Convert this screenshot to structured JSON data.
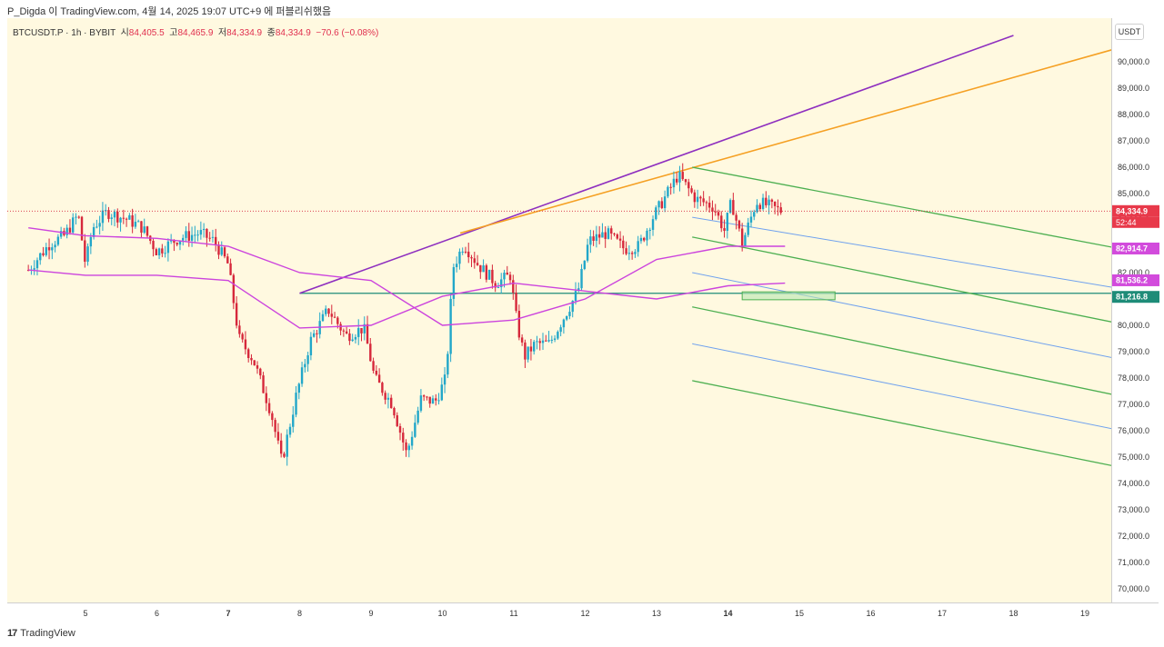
{
  "header": {
    "publish_text": "P_Digda 이 TradingView.com, 4월 14, 2025 19:07 UTC+9 에 퍼블리쉬했음"
  },
  "legend": {
    "symbol": "BTCUSDT.P · 1h · BYBIT",
    "open_label": "시",
    "open": "84,405.5",
    "high_label": "고",
    "high": "84,465.9",
    "low_label": "저",
    "low": "84,334.9",
    "close_label": "종",
    "close": "84,334.9",
    "change": "−70.6 (−0.08%)"
  },
  "footer": {
    "brand": "TradingView",
    "logo": "17"
  },
  "price_axis": {
    "unit": "USDT",
    "ticks": [
      "90,000.0",
      "89,000.0",
      "88,000.0",
      "87,000.0",
      "86,000.0",
      "85,000.0",
      "84,000.0",
      "83,000.0",
      "82,000.0",
      "81,000.0",
      "80,000.0",
      "79,000.0",
      "78,000.0",
      "77,000.0",
      "76,000.0",
      "75,000.0",
      "74,000.0",
      "73,000.0",
      "72,000.0",
      "71,000.0",
      "70,000.0"
    ],
    "badges": {
      "last": "84,334.9",
      "countdown": "52:44",
      "ma_upper": "82,914.7",
      "ma_lower": "81,536.2",
      "hline": "81,216.8"
    }
  },
  "time_axis": {
    "ticks": [
      "5",
      "6",
      "7",
      "8",
      "9",
      "10",
      "11",
      "12",
      "13",
      "14",
      "15",
      "16",
      "17",
      "18",
      "19"
    ]
  },
  "colors": {
    "background": "#fff9e0",
    "up": "#22a7c9",
    "down": "#d6283b",
    "ma": "#cc44dd",
    "purple": "#8e2fbf",
    "orange": "#f5a023",
    "green": "#4caf50",
    "blue": "#6fa1ee",
    "hline": "#1e8c78",
    "badge_last": "#e8394a",
    "badge_ma": "#d24bdc",
    "badge_hline": "#1e8c78"
  },
  "chart_data": {
    "type": "candlestick",
    "symbol": "BTCUSDT.P",
    "interval": "1h",
    "exchange": "BYBIT",
    "ylim": [
      69500,
      91000
    ],
    "x_day_range": [
      4.2,
      19.7
    ],
    "close_path": [
      [
        4.2,
        82100
      ],
      [
        4.5,
        83100
      ],
      [
        4.7,
        83400
      ],
      [
        4.9,
        84200
      ],
      [
        5.0,
        82300
      ],
      [
        5.1,
        83700
      ],
      [
        5.3,
        84300
      ],
      [
        5.6,
        84000
      ],
      [
        5.8,
        83700
      ],
      [
        6.0,
        82800
      ],
      [
        6.3,
        83300
      ],
      [
        6.6,
        83500
      ],
      [
        6.8,
        83200
      ],
      [
        7.0,
        82300
      ],
      [
        7.15,
        79500
      ],
      [
        7.35,
        78700
      ],
      [
        7.6,
        76700
      ],
      [
        7.75,
        74800
      ],
      [
        7.95,
        77300
      ],
      [
        8.15,
        79400
      ],
      [
        8.4,
        80600
      ],
      [
        8.65,
        79600
      ],
      [
        8.9,
        79900
      ],
      [
        9.05,
        78000
      ],
      [
        9.3,
        77000
      ],
      [
        9.5,
        75100
      ],
      [
        9.7,
        77200
      ],
      [
        9.9,
        77100
      ],
      [
        10.05,
        78000
      ],
      [
        10.15,
        82200
      ],
      [
        10.3,
        83100
      ],
      [
        10.5,
        82300
      ],
      [
        10.75,
        81600
      ],
      [
        10.95,
        81900
      ],
      [
        11.05,
        80000
      ],
      [
        11.15,
        78800
      ],
      [
        11.3,
        79300
      ],
      [
        11.5,
        79300
      ],
      [
        11.7,
        80300
      ],
      [
        11.9,
        81300
      ],
      [
        12.05,
        83200
      ],
      [
        12.3,
        83500
      ],
      [
        12.55,
        82900
      ],
      [
        12.75,
        83000
      ],
      [
        12.95,
        84100
      ],
      [
        13.15,
        85000
      ],
      [
        13.3,
        85700
      ],
      [
        13.55,
        84800
      ],
      [
        13.8,
        84500
      ],
      [
        13.95,
        83600
      ],
      [
        14.05,
        84700
      ],
      [
        14.2,
        83100
      ],
      [
        14.4,
        84700
      ],
      [
        14.6,
        84500
      ],
      [
        14.75,
        84335
      ]
    ],
    "moving_averages": [
      {
        "name": "",
        "points": [
          [
            4.2,
            83700
          ],
          [
            5.0,
            83400
          ],
          [
            6.0,
            83300
          ],
          [
            7.0,
            83000
          ],
          [
            8.0,
            82000
          ],
          [
            9.0,
            81700
          ],
          [
            10.0,
            80000
          ],
          [
            11.0,
            80200
          ],
          [
            12.0,
            81000
          ],
          [
            13.0,
            82500
          ],
          [
            14.0,
            83000
          ],
          [
            14.8,
            83000
          ]
        ]
      },
      {
        "name": "",
        "points": [
          [
            4.2,
            82100
          ],
          [
            5.0,
            81900
          ],
          [
            6.0,
            81900
          ],
          [
            7.0,
            81700
          ],
          [
            8.0,
            79900
          ],
          [
            9.0,
            80000
          ],
          [
            10.0,
            81100
          ],
          [
            11.0,
            81600
          ],
          [
            12.0,
            81300
          ],
          [
            13.0,
            81000
          ],
          [
            14.0,
            81500
          ],
          [
            14.8,
            81600
          ]
        ]
      }
    ],
    "lines": [
      {
        "name": "",
        "points": [
          [
            8.0,
            81216.8
          ],
          [
            19.7,
            81216.8
          ]
        ]
      },
      {
        "name": "",
        "points": [
          [
            8.0,
            81216.8
          ],
          [
            18.0,
            91000
          ]
        ]
      },
      {
        "name": "",
        "points": [
          [
            10.25,
            83500
          ],
          [
            19.7,
            90700
          ]
        ]
      },
      {
        "name": "",
        "points": [
          [
            13.5,
            86000
          ],
          [
            19.7,
            82800
          ]
        ]
      },
      {
        "name": "",
        "points": [
          [
            13.5,
            83350
          ],
          [
            19.7,
            79950
          ]
        ]
      },
      {
        "name": "",
        "points": [
          [
            13.5,
            80700
          ],
          [
            19.7,
            77200
          ]
        ]
      },
      {
        "name": "",
        "points": [
          [
            13.5,
            77900
          ],
          [
            19.7,
            74500
          ]
        ]
      },
      {
        "name": "",
        "points": [
          [
            13.5,
            84100
          ],
          [
            19.7,
            81300
          ]
        ]
      },
      {
        "name": "",
        "points": [
          [
            13.5,
            82000
          ],
          [
            19.7,
            78600
          ]
        ]
      },
      {
        "name": "",
        "points": [
          [
            13.5,
            79300
          ],
          [
            19.7,
            75900
          ]
        ]
      }
    ],
    "zone": {
      "x": [
        14.2,
        15.5
      ],
      "y": [
        80970,
        81270
      ]
    }
  }
}
